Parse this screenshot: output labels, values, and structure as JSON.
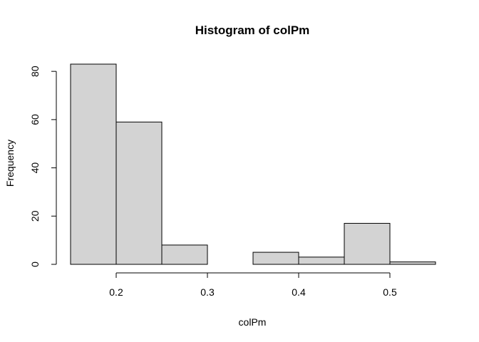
{
  "chart_data": {
    "type": "bar",
    "title": "Histogram of colPm",
    "xlabel": "colPm",
    "ylabel": "Frequency",
    "bins": [
      {
        "start": 0.15,
        "end": 0.2,
        "count": 83
      },
      {
        "start": 0.2,
        "end": 0.25,
        "count": 59
      },
      {
        "start": 0.25,
        "end": 0.3,
        "count": 8
      },
      {
        "start": 0.3,
        "end": 0.35,
        "count": 0
      },
      {
        "start": 0.35,
        "end": 0.4,
        "count": 5
      },
      {
        "start": 0.4,
        "end": 0.45,
        "count": 3
      },
      {
        "start": 0.45,
        "end": 0.5,
        "count": 17
      },
      {
        "start": 0.5,
        "end": 0.55,
        "count": 1
      }
    ],
    "x_ticks": [
      {
        "value": 0.2,
        "label": "0.2"
      },
      {
        "value": 0.3,
        "label": "0.3"
      },
      {
        "value": 0.4,
        "label": "0.4"
      },
      {
        "value": 0.5,
        "label": "0.5"
      }
    ],
    "y_ticks": [
      {
        "value": 0,
        "label": "0"
      },
      {
        "value": 20,
        "label": "20"
      },
      {
        "value": 40,
        "label": "40"
      },
      {
        "value": 60,
        "label": "60"
      },
      {
        "value": 80,
        "label": "80"
      }
    ],
    "xlim": [
      0.15,
      0.55
    ],
    "ylim": [
      0,
      83
    ],
    "grid": false,
    "colors": {
      "bar_fill": "#d3d3d3",
      "bar_stroke": "#000000"
    }
  }
}
